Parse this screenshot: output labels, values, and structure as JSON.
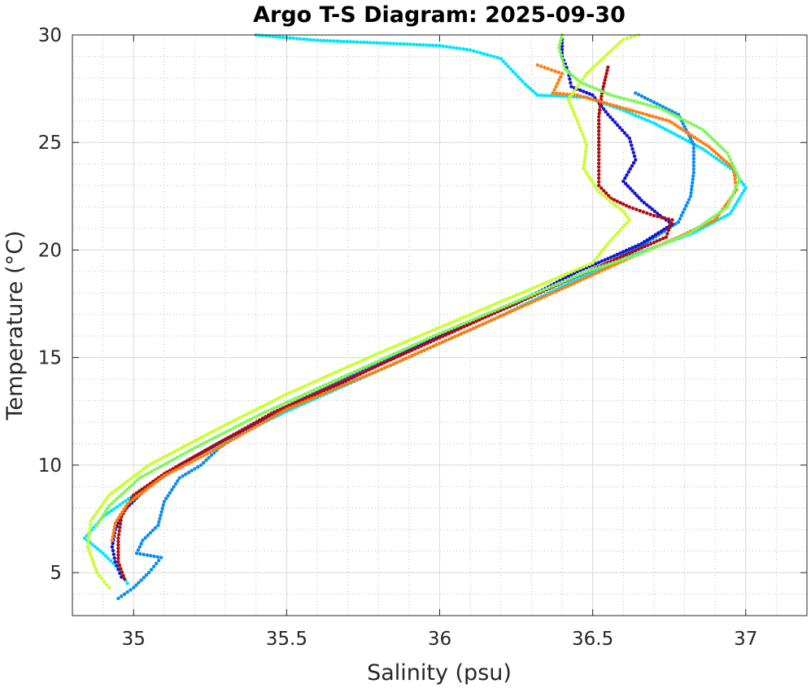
{
  "chart_data": {
    "type": "scatter",
    "title": "Argo T-S Diagram: 2025-09-30",
    "xlabel": "Salinity (psu)",
    "ylabel": "Temperature (°C)",
    "xlim": [
      34.8,
      37.2
    ],
    "ylim": [
      3,
      30
    ],
    "xticks": [
      35,
      35.5,
      36,
      36.5,
      37
    ],
    "xtick_labels": [
      "35",
      "35.5",
      "36",
      "36.5",
      "37"
    ],
    "yticks": [
      5,
      10,
      15,
      20,
      25,
      30
    ],
    "ytick_labels": [
      "5",
      "10",
      "15",
      "20",
      "25",
      "30"
    ],
    "grid": "major and minor",
    "legend": "none",
    "series": [
      {
        "color": "#00e5ff",
        "points": [
          [
            35.4,
            30.0
          ],
          [
            35.6,
            29.75
          ],
          [
            35.85,
            29.6
          ],
          [
            36.0,
            29.5
          ],
          [
            36.1,
            29.3
          ],
          [
            36.2,
            28.9
          ],
          [
            36.24,
            28.3
          ],
          [
            36.28,
            27.7
          ],
          [
            36.32,
            27.2
          ],
          [
            36.48,
            27.1
          ],
          [
            36.6,
            26.5
          ],
          [
            36.7,
            25.9
          ],
          [
            36.86,
            24.7
          ],
          [
            36.96,
            23.7
          ],
          [
            37.0,
            22.9
          ],
          [
            36.95,
            21.7
          ],
          [
            36.83,
            20.8
          ],
          [
            36.62,
            19.7
          ],
          [
            36.4,
            18.3
          ],
          [
            36.15,
            16.6
          ],
          [
            35.85,
            14.7
          ],
          [
            35.5,
            12.5
          ],
          [
            35.2,
            10.4
          ],
          [
            35.02,
            8.8
          ],
          [
            34.9,
            7.6
          ],
          [
            34.84,
            6.6
          ],
          [
            34.9,
            5.9
          ],
          [
            34.95,
            5.2
          ],
          [
            34.98,
            4.5
          ]
        ]
      },
      {
        "color": "#0a8cf0",
        "points": [
          [
            36.64,
            27.3
          ],
          [
            36.78,
            26.3
          ],
          [
            36.83,
            24.9
          ],
          [
            36.83,
            23.6
          ],
          [
            36.82,
            22.5
          ],
          [
            36.78,
            21.3
          ],
          [
            36.66,
            20.2
          ],
          [
            36.52,
            19.2
          ],
          [
            36.42,
            18.6
          ],
          [
            36.25,
            17.6
          ],
          [
            36.0,
            16.0
          ],
          [
            35.72,
            14.2
          ],
          [
            35.45,
            12.4
          ],
          [
            35.28,
            10.8
          ],
          [
            35.22,
            10.0
          ],
          [
            35.15,
            9.4
          ],
          [
            35.1,
            8.3
          ],
          [
            35.08,
            7.2
          ],
          [
            35.03,
            6.5
          ],
          [
            35.01,
            5.9
          ],
          [
            35.09,
            5.7
          ],
          [
            35.05,
            5.0
          ],
          [
            35.0,
            4.3
          ],
          [
            34.95,
            3.8
          ]
        ]
      },
      {
        "color": "#1414d2",
        "points": [
          [
            36.4,
            29.8
          ],
          [
            36.4,
            29.0
          ],
          [
            36.42,
            28.3
          ],
          [
            36.43,
            27.6
          ],
          [
            36.5,
            27.2
          ],
          [
            36.55,
            26.3
          ],
          [
            36.62,
            25.2
          ],
          [
            36.64,
            24.2
          ],
          [
            36.6,
            23.2
          ],
          [
            36.66,
            22.3
          ],
          [
            36.72,
            21.6
          ],
          [
            36.76,
            21.2
          ],
          [
            36.66,
            20.3
          ],
          [
            36.55,
            19.6
          ],
          [
            36.45,
            19.0
          ],
          [
            36.25,
            17.5
          ],
          [
            36.0,
            16.0
          ],
          [
            35.75,
            14.3
          ],
          [
            35.5,
            12.6
          ],
          [
            35.3,
            11.2
          ],
          [
            35.15,
            10.0
          ],
          [
            35.04,
            8.9
          ],
          [
            34.97,
            7.9
          ],
          [
            34.94,
            7.0
          ],
          [
            34.93,
            6.2
          ],
          [
            34.94,
            5.5
          ],
          [
            34.96,
            4.8
          ]
        ]
      },
      {
        "color": "#b40a0a",
        "points": [
          [
            36.55,
            28.5
          ],
          [
            36.53,
            27.3
          ],
          [
            36.52,
            26.2
          ],
          [
            36.52,
            25.2
          ],
          [
            36.52,
            24.2
          ],
          [
            36.52,
            23.0
          ],
          [
            36.56,
            22.4
          ],
          [
            36.62,
            22.0
          ],
          [
            36.7,
            21.6
          ],
          [
            36.76,
            21.4
          ],
          [
            36.74,
            20.6
          ],
          [
            36.58,
            19.6
          ],
          [
            36.45,
            18.8
          ],
          [
            36.2,
            17.2
          ],
          [
            35.95,
            15.6
          ],
          [
            35.7,
            14.0
          ],
          [
            35.45,
            12.4
          ],
          [
            35.25,
            10.8
          ],
          [
            35.1,
            9.6
          ],
          [
            35.0,
            8.6
          ],
          [
            34.96,
            7.6
          ],
          [
            34.95,
            6.6
          ],
          [
            34.95,
            5.5
          ],
          [
            34.97,
            4.7
          ]
        ]
      },
      {
        "color": "#ff7d0a",
        "points": [
          [
            36.32,
            28.6
          ],
          [
            36.4,
            28.2
          ],
          [
            36.37,
            27.3
          ],
          [
            36.45,
            27.2
          ],
          [
            36.6,
            26.6
          ],
          [
            36.75,
            26.0
          ],
          [
            36.88,
            24.8
          ],
          [
            36.96,
            23.8
          ],
          [
            36.97,
            22.8
          ],
          [
            36.9,
            21.4
          ],
          [
            36.78,
            20.6
          ],
          [
            36.6,
            19.5
          ],
          [
            36.4,
            18.2
          ],
          [
            36.1,
            16.3
          ],
          [
            35.8,
            14.4
          ],
          [
            35.5,
            12.6
          ],
          [
            35.25,
            10.6
          ],
          [
            35.1,
            9.5
          ],
          [
            34.98,
            8.2
          ],
          [
            34.94,
            7.3
          ],
          [
            34.93,
            6.5
          ]
        ]
      },
      {
        "color": "#c8ff2d",
        "points": [
          [
            36.65,
            30.0
          ],
          [
            36.6,
            29.8
          ],
          [
            36.48,
            28.2
          ],
          [
            36.42,
            27.0
          ],
          [
            36.45,
            26.0
          ],
          [
            36.48,
            24.9
          ],
          [
            36.47,
            23.8
          ],
          [
            36.52,
            22.7
          ],
          [
            36.6,
            21.8
          ],
          [
            36.62,
            21.4
          ],
          [
            36.55,
            20.3
          ],
          [
            36.5,
            19.4
          ],
          [
            36.35,
            18.5
          ],
          [
            36.1,
            17.0
          ],
          [
            35.8,
            15.2
          ],
          [
            35.5,
            13.3
          ],
          [
            35.25,
            11.5
          ],
          [
            35.05,
            10.0
          ],
          [
            34.92,
            8.6
          ],
          [
            34.86,
            7.4
          ],
          [
            34.85,
            6.2
          ],
          [
            34.88,
            5.0
          ],
          [
            34.92,
            4.3
          ]
        ]
      },
      {
        "color": "#82f55a",
        "points": [
          [
            36.4,
            30.0
          ],
          [
            36.39,
            29.4
          ],
          [
            36.41,
            28.4
          ],
          [
            36.46,
            27.8
          ],
          [
            36.56,
            27.2
          ],
          [
            36.72,
            26.6
          ],
          [
            36.86,
            25.6
          ],
          [
            36.94,
            24.5
          ],
          [
            36.98,
            23.3
          ],
          [
            36.94,
            22.0
          ],
          [
            36.82,
            20.8
          ],
          [
            36.65,
            19.8
          ],
          [
            36.48,
            19.0
          ],
          [
            36.25,
            17.6
          ],
          [
            35.98,
            16.0
          ],
          [
            35.7,
            14.2
          ],
          [
            35.42,
            12.4
          ],
          [
            35.2,
            10.8
          ],
          [
            35.02,
            9.4
          ],
          [
            34.92,
            8.1
          ],
          [
            34.88,
            7.2
          ]
        ]
      }
    ]
  }
}
